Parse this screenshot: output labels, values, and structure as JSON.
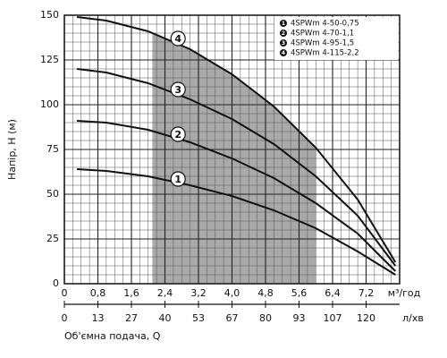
{
  "chart_data": {
    "type": "line",
    "ylabel": "Напір, H (м)",
    "xunit": "м³/год",
    "x2label": "Об'ємна подача, Q",
    "x2unit": "л/хв",
    "x": [
      0.3,
      1,
      2,
      3,
      4,
      5,
      6,
      7,
      7.9
    ],
    "series": [
      {
        "name": "4SPWm 4-50-0,75",
        "marker_label": "1",
        "color": "#111111",
        "values": [
          64,
          63,
          60,
          55,
          49,
          41,
          31,
          18,
          5
        ]
      },
      {
        "name": "4SPWm 4-70-1,1",
        "marker_label": "2",
        "color": "#111111",
        "values": [
          91,
          90,
          86,
          79,
          70,
          59,
          45,
          28,
          7
        ]
      },
      {
        "name": "4SPWm 4-95-1,5",
        "marker_label": "3",
        "color": "#111111",
        "values": [
          120,
          118,
          112,
          103,
          92,
          78,
          60,
          38,
          10
        ]
      },
      {
        "name": "4SPWm 4-115-2,2",
        "marker_label": "4",
        "color": "#111111",
        "values": [
          149,
          147,
          141,
          131,
          117,
          99,
          76,
          47,
          12
        ]
      }
    ],
    "shaded_range": [
      2.1,
      6.0
    ],
    "shade_color": "#a9a9a9",
    "xlim": [
      0,
      8
    ],
    "xticks": [
      0,
      {
        "value": 0.8,
        "label": "0,8"
      },
      {
        "value": 1.6,
        "label": "1,6"
      },
      {
        "value": 2.4,
        "label": "2,4"
      },
      {
        "value": 3.2,
        "label": "3,2"
      },
      {
        "value": 4.0,
        "label": "4,0"
      },
      {
        "value": 4.8,
        "label": "4,8"
      },
      {
        "value": 5.6,
        "label": "5,6"
      },
      {
        "value": 6.4,
        "label": "6,4"
      },
      {
        "value": 7.2,
        "label": "7,2"
      }
    ],
    "x2lim": [
      0,
      133.33
    ],
    "x2ticks": [
      0,
      {
        "value": 13.33,
        "label": "13"
      },
      {
        "value": 26.67,
        "label": "27"
      },
      {
        "value": 40,
        "label": "40"
      },
      {
        "value": 53.33,
        "label": "53"
      },
      {
        "value": 66.67,
        "label": "67"
      },
      {
        "value": 80,
        "label": "80"
      },
      {
        "value": 93.33,
        "label": "93"
      },
      {
        "value": 106.67,
        "label": "107"
      },
      {
        "value": 120,
        "label": "120"
      }
    ],
    "ylim": [
      0,
      150
    ],
    "yticks": [
      0,
      25,
      50,
      75,
      100,
      125,
      150
    ],
    "grid": true,
    "legend": "upper right"
  }
}
